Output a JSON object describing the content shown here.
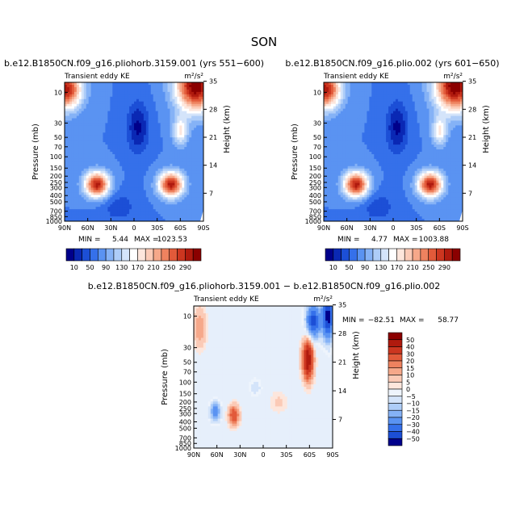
{
  "figure": {
    "season_title": "SON",
    "colors": {
      "dark_blue": "#00008b",
      "dark_red": "#8b0000",
      "white": "#ffffff"
    }
  },
  "chart_data": [
    {
      "type": "heatmap",
      "title": "b.e12.B1850CN.f09_g16.pliohorb.3159.001 (yrs 551−600)",
      "left_label": "Transient eddy KE",
      "units_label": "m²/s²",
      "xlabel": "",
      "ylabel": "Pressure (mb)",
      "ylabel_right": "Height (km)",
      "x_ticks": [
        "90N",
        "60N",
        "30N",
        "0",
        "30S",
        "60S",
        "90S"
      ],
      "y_ticks": [
        "10",
        "30",
        "50",
        "70",
        "100",
        "150",
        "200",
        "250",
        "300",
        "400",
        "500",
        "700",
        "850",
        "1000"
      ],
      "y_ticks_right": [
        "35",
        "28",
        "21",
        "14",
        "7"
      ],
      "stats": {
        "min_label": "MIN =",
        "min_value": "5.44",
        "max_label": "MAX =",
        "max_value": "1023.53"
      },
      "colorbar": {
        "tick_labels": [
          "10",
          "50",
          "90",
          "130",
          "170",
          "210",
          "250",
          "290"
        ],
        "colors": [
          "#00008b",
          "#0a28b4",
          "#1c4fd6",
          "#3570ea",
          "#5a93f2",
          "#85b2f6",
          "#aecdf8",
          "#d4e4fa",
          "#ffffff",
          "#fde6dc",
          "#fbcab6",
          "#f6a88a",
          "#ee825f",
          "#e25a3a",
          "#cc3620",
          "#b01a0e",
          "#8b0000"
        ]
      },
      "features": [
        {
          "name": "upper-left-high",
          "lat": -82,
          "p": 14,
          "value": 260
        },
        {
          "name": "upper-right-high",
          "lat": 70,
          "p": 12,
          "value": 290
        },
        {
          "name": "nh-jet-max",
          "lat": -48,
          "p": 270,
          "value": 290
        },
        {
          "name": "sh-jet-max",
          "lat": 48,
          "p": 270,
          "value": 290
        },
        {
          "name": "tropical-min",
          "lat": 2,
          "p": 35,
          "value": 10
        }
      ]
    },
    {
      "type": "heatmap",
      "title": "b.e12.B1850CN.f09_g16.plio.002 (yrs 601−650)",
      "left_label": "Transient eddy KE",
      "units_label": "m²/s²",
      "xlabel": "",
      "ylabel": "Pressure (mb)",
      "ylabel_right": "Height (km)",
      "x_ticks": [
        "90N",
        "60N",
        "30N",
        "0",
        "30S",
        "60S",
        "90S"
      ],
      "y_ticks": [
        "10",
        "30",
        "50",
        "70",
        "100",
        "150",
        "200",
        "250",
        "300",
        "400",
        "500",
        "700",
        "850",
        "1000"
      ],
      "y_ticks_right": [
        "35",
        "28",
        "21",
        "14",
        "7"
      ],
      "stats": {
        "min_label": "MIN =",
        "min_value": "4.77",
        "max_label": "MAX =",
        "max_value": "1003.88"
      },
      "colorbar": {
        "tick_labels": [
          "10",
          "50",
          "90",
          "130",
          "170",
          "210",
          "250",
          "290"
        ],
        "colors": [
          "#00008b",
          "#0a28b4",
          "#1c4fd6",
          "#3570ea",
          "#5a93f2",
          "#85b2f6",
          "#aecdf8",
          "#d4e4fa",
          "#ffffff",
          "#fde6dc",
          "#fbcab6",
          "#f6a88a",
          "#ee825f",
          "#e25a3a",
          "#cc3620",
          "#b01a0e",
          "#8b0000"
        ]
      },
      "features": [
        {
          "name": "upper-left-high",
          "lat": -82,
          "p": 14,
          "value": 260
        },
        {
          "name": "upper-right-high",
          "lat": 70,
          "p": 12,
          "value": 290
        },
        {
          "name": "nh-jet-max",
          "lat": -48,
          "p": 270,
          "value": 290
        },
        {
          "name": "sh-jet-max",
          "lat": 48,
          "p": 270,
          "value": 290
        },
        {
          "name": "tropical-min",
          "lat": 2,
          "p": 35,
          "value": 10
        }
      ]
    },
    {
      "type": "heatmap",
      "title": "b.e12.B1850CN.f09_g16.pliohorb.3159.001 − b.e12.B1850CN.f09_g16.plio.002",
      "left_label": "Transient eddy KE",
      "units_label": "m²/s²",
      "xlabel": "",
      "ylabel": "Pressure (mb)",
      "ylabel_right": "Height (km)",
      "x_ticks": [
        "90N",
        "60N",
        "30N",
        "0",
        "30S",
        "60S",
        "90S"
      ],
      "y_ticks": [
        "10",
        "30",
        "50",
        "70",
        "100",
        "150",
        "200",
        "250",
        "300",
        "400",
        "500",
        "700",
        "850",
        "1000"
      ],
      "y_ticks_right": [
        "35",
        "28",
        "21",
        "14",
        "7"
      ],
      "stats": {
        "min_label": "MIN =",
        "min_value": "−82.51",
        "max_label": "MAX =",
        "max_value": "58.77"
      },
      "colorbar": {
        "tick_labels": [
          "50",
          "40",
          "30",
          "20",
          "15",
          "10",
          "5",
          "0",
          "−5",
          "−10",
          "−15",
          "−20",
          "−30",
          "−40",
          "−50"
        ],
        "colors": [
          "#8b0000",
          "#b01a0e",
          "#cc3620",
          "#e25a3a",
          "#ee825f",
          "#f6a88a",
          "#fbcab6",
          "#fde6dc",
          "#eef4fc",
          "#d4e4fa",
          "#aecdf8",
          "#85b2f6",
          "#5a93f2",
          "#3570ea",
          "#1c4fd6",
          "#00008b"
        ]
      },
      "features": [
        {
          "name": "upper-left-pos",
          "lat": -80,
          "p": 15,
          "value": 15
        },
        {
          "name": "upper-right-neg",
          "lat": 65,
          "p": 12,
          "value": -40
        },
        {
          "name": "rising-pos-jet",
          "lat": 58,
          "p": 40,
          "value": 45
        },
        {
          "name": "nh-lower-neg",
          "lat": -62,
          "p": 280,
          "value": -25
        },
        {
          "name": "nh-lower-pos",
          "lat": -38,
          "p": 320,
          "value": 25
        }
      ]
    }
  ]
}
